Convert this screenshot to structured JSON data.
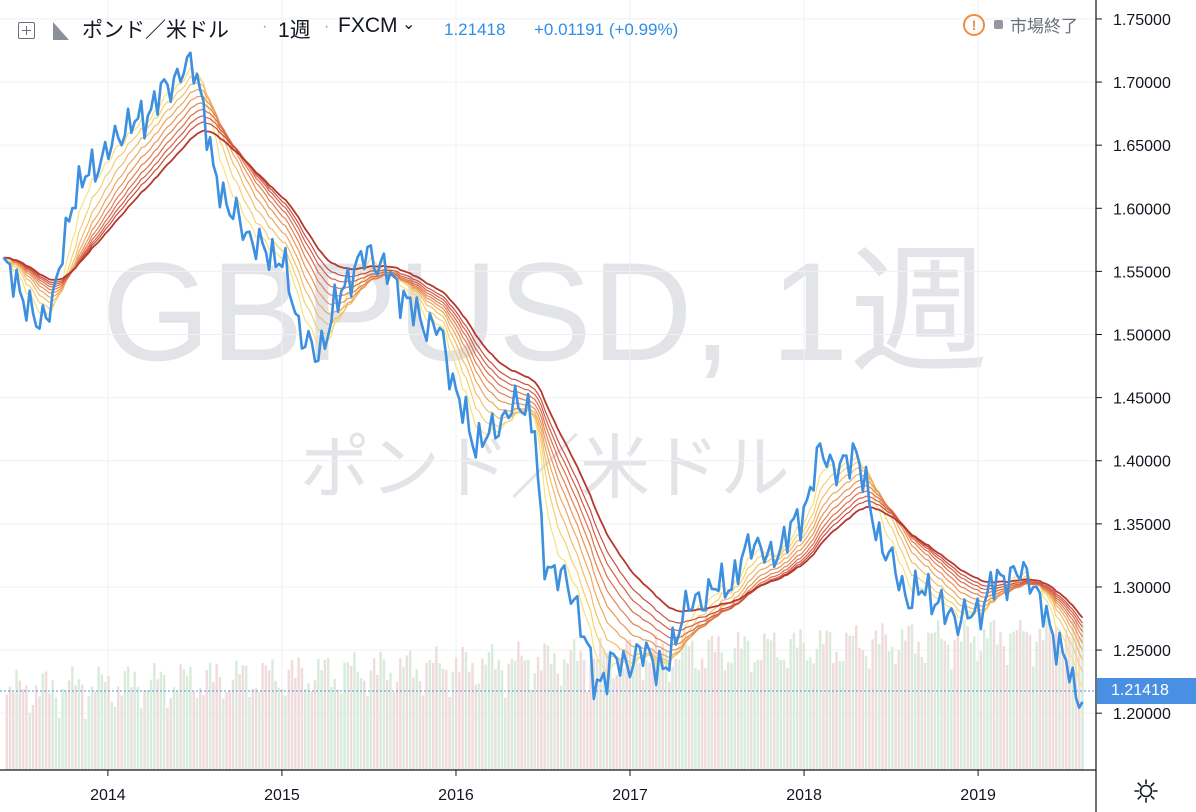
{
  "header": {
    "symbol_name": "ポンド／米ドル",
    "interval": "1週",
    "exchange": "FXCM",
    "last_price": "1.21418",
    "change": "+0.01191 (+0.99%)",
    "market_status": "市場終了"
  },
  "watermark": {
    "line1": "GBPUSD, 1週",
    "line2": "ポンド／米ドル"
  },
  "colors": {
    "price_line": "#3d8fe0",
    "ribbon": [
      "#f6e27f",
      "#f5d072",
      "#f2bd69",
      "#eea760",
      "#e99459",
      "#e48052",
      "#dc6e4c",
      "#d45f47",
      "#c94f41",
      "#b5382e"
    ],
    "volume_up": "#d9ecdc",
    "volume_down": "#f0dcdc",
    "price_tag": "#4a90e2"
  },
  "chart_data": {
    "type": "line",
    "title": "ポンド／米ドル · 1週 · FXCM",
    "x_axis": {
      "start": "2013-05",
      "end": "2019-08",
      "tick_labels": [
        "2014",
        "2015",
        "2016",
        "2017",
        "2018",
        "2019"
      ],
      "tick_years": [
        2014,
        2015,
        2016,
        2017,
        2018,
        2019
      ]
    },
    "y_axis": {
      "range": [
        1.155,
        1.765
      ],
      "position": "right",
      "tick_labels": [
        "1.75000",
        "1.70000",
        "1.65000",
        "1.60000",
        "1.55000",
        "1.50000",
        "1.45000",
        "1.40000",
        "1.35000",
        "1.30000",
        "1.25000",
        "1.20000"
      ],
      "tick_values": [
        1.75,
        1.7,
        1.65,
        1.6,
        1.55,
        1.5,
        1.45,
        1.4,
        1.35,
        1.3,
        1.25,
        1.2
      ]
    },
    "last_value_label": "1.21418",
    "last_value": 1.21418,
    "grid": true,
    "series": [
      {
        "kind": "price",
        "x": [
          2013.4,
          2013.5,
          2013.6,
          2013.7,
          2013.8,
          2013.9,
          2014.0,
          2014.1,
          2014.2,
          2014.3,
          2014.4,
          2014.5,
          2014.55,
          2014.6,
          2014.7,
          2014.8,
          2014.9,
          2015.0,
          2015.1,
          2015.2,
          2015.3,
          2015.4,
          2015.5,
          2015.6,
          2015.7,
          2015.8,
          2015.9,
          2016.0,
          2016.1,
          2016.2,
          2016.3,
          2016.4,
          2016.45,
          2016.5,
          2016.6,
          2016.7,
          2016.8,
          2016.9,
          2017.0,
          2017.1,
          2017.2,
          2017.3,
          2017.4,
          2017.5,
          2017.6,
          2017.7,
          2017.8,
          2017.9,
          2018.0,
          2018.1,
          2018.2,
          2018.3,
          2018.4,
          2018.5,
          2018.6,
          2018.7,
          2018.8,
          2018.9,
          2019.0,
          2019.1,
          2019.2,
          2019.3,
          2019.4,
          2019.5,
          2019.55,
          2019.6
        ],
        "values": [
          1.555,
          1.535,
          1.505,
          1.535,
          1.61,
          1.63,
          1.645,
          1.665,
          1.67,
          1.69,
          1.705,
          1.715,
          1.68,
          1.63,
          1.6,
          1.58,
          1.565,
          1.56,
          1.505,
          1.48,
          1.52,
          1.55,
          1.565,
          1.55,
          1.53,
          1.51,
          1.505,
          1.455,
          1.415,
          1.42,
          1.44,
          1.445,
          1.43,
          1.32,
          1.31,
          1.285,
          1.22,
          1.24,
          1.24,
          1.25,
          1.23,
          1.28,
          1.29,
          1.3,
          1.305,
          1.34,
          1.32,
          1.34,
          1.36,
          1.41,
          1.39,
          1.41,
          1.35,
          1.32,
          1.29,
          1.3,
          1.28,
          1.275,
          1.28,
          1.305,
          1.31,
          1.31,
          1.27,
          1.245,
          1.215,
          1.214
        ]
      }
    ]
  }
}
